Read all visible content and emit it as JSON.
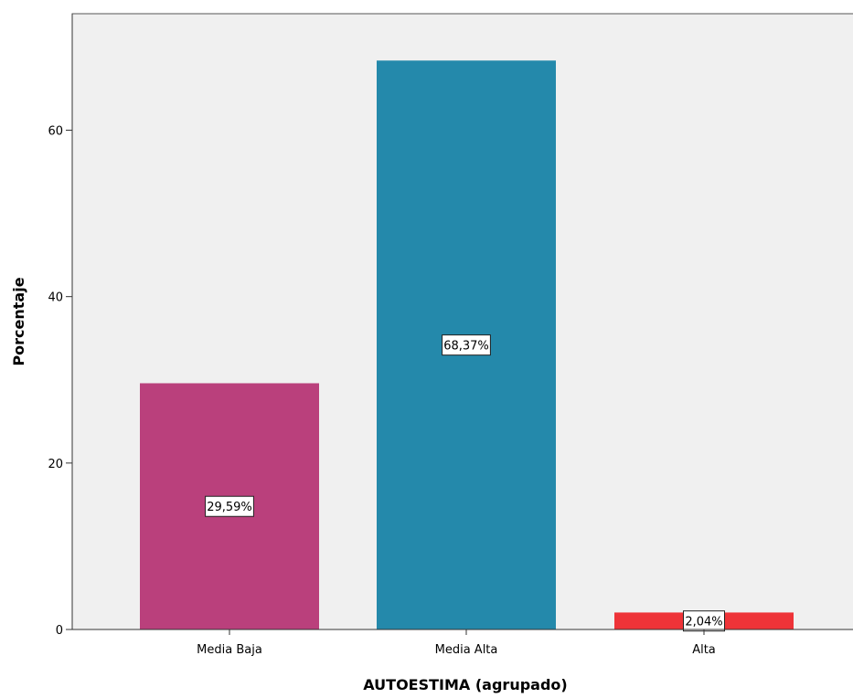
{
  "chart_data": {
    "type": "bar",
    "title": "",
    "xlabel": "AUTOESTIMA (agrupado)",
    "ylabel": "Porcentaje",
    "categories": [
      "Media Baja",
      "Media Alta",
      "Alta"
    ],
    "values": [
      29.59,
      68.37,
      2.04
    ],
    "data_labels": [
      "29,59%",
      "68,37%",
      "2,04%"
    ],
    "colors": [
      "#BA407C",
      "#2489AB",
      "#EE3338"
    ],
    "plot_background": "#F0F0F0",
    "ylim": [
      0,
      74
    ],
    "yticks": [
      0,
      20,
      40,
      60
    ],
    "ytick_labels": [
      "0",
      "20",
      "40",
      "60"
    ],
    "grid": false,
    "legend": "none"
  }
}
